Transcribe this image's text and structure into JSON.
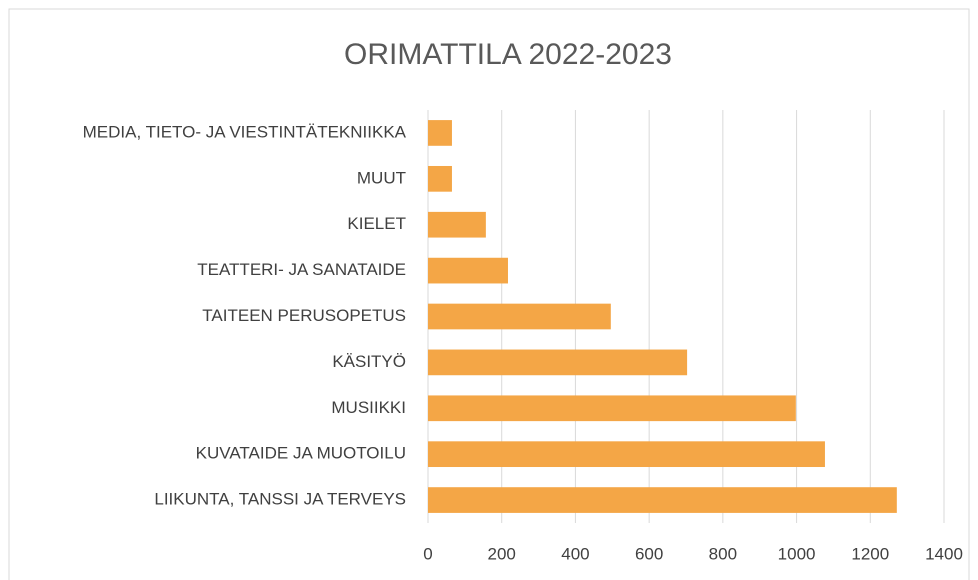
{
  "chart_data": {
    "type": "hbar",
    "title": "ORIMATTILA 2022-2023",
    "categories": [
      "MEDIA, TIETO- JA VIESTINTÄTEKNIIKKA",
      "MUUT",
      "KIELET",
      "TEATTERI- JA SANATAIDE",
      "TAITEEN PERUSOPETUS",
      "KÄSITYÖ",
      "MUSIIKKI",
      "KUVATAIDE JA MUOTOILU",
      "LIIKUNTA, TANSSI JA TERVEYS"
    ],
    "values": [
      65,
      65,
      157,
      217,
      496,
      703,
      998,
      1077,
      1272
    ],
    "color": "#f4a646",
    "xlim": [
      0,
      1400
    ],
    "xticks": [
      0,
      200,
      400,
      600,
      800,
      1000,
      1200,
      1400
    ],
    "grid": true
  }
}
